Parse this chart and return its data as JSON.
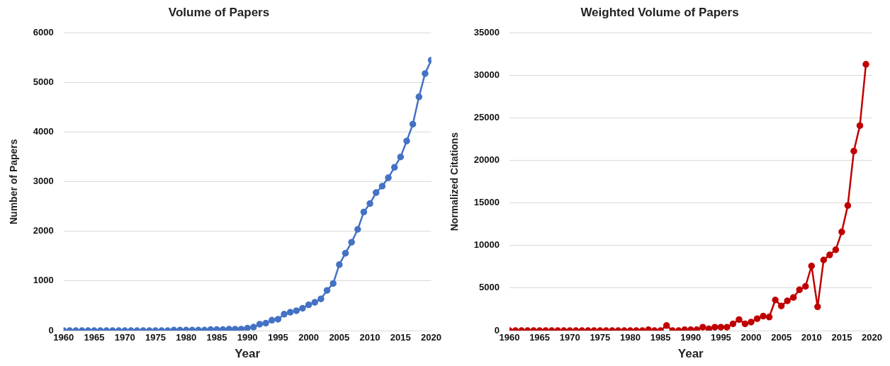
{
  "chart_data": [
    {
      "type": "line",
      "title": "Volume of Papers",
      "xlabel": "Year",
      "ylabel": "Number of Papers",
      "x": [
        1960,
        1961,
        1962,
        1963,
        1964,
        1965,
        1966,
        1967,
        1968,
        1969,
        1970,
        1971,
        1972,
        1973,
        1974,
        1975,
        1976,
        1977,
        1978,
        1979,
        1980,
        1981,
        1982,
        1983,
        1984,
        1985,
        1986,
        1987,
        1988,
        1989,
        1990,
        1991,
        1992,
        1993,
        1994,
        1995,
        1996,
        1997,
        1998,
        1999,
        2000,
        2001,
        2002,
        2003,
        2004,
        2005,
        2006,
        2007,
        2008,
        2009,
        2010,
        2011,
        2012,
        2013,
        2014,
        2015,
        2016,
        2017,
        2018,
        2019,
        2020
      ],
      "series": [
        {
          "color": "#4472c4",
          "values": [
            0,
            0,
            0,
            0,
            0,
            0,
            0,
            0,
            0,
            0,
            0,
            0,
            0,
            0,
            0,
            0,
            0,
            0,
            10,
            10,
            10,
            10,
            10,
            10,
            20,
            20,
            20,
            30,
            30,
            30,
            50,
            70,
            130,
            150,
            210,
            230,
            330,
            370,
            400,
            450,
            520,
            570,
            640,
            810,
            950,
            1330,
            1560,
            1780,
            2040,
            2390,
            2560,
            2780,
            2910,
            3080,
            3290,
            3500,
            3820,
            4160,
            4710,
            5180,
            5450
          ]
        }
      ],
      "xlim": [
        1960,
        2020
      ],
      "xticks": [
        1960,
        1965,
        1970,
        1975,
        1980,
        1985,
        1990,
        1995,
        2000,
        2005,
        2010,
        2015,
        2020
      ],
      "ylim": [
        0,
        6000
      ],
      "yticks": [
        0,
        1000,
        2000,
        3000,
        4000,
        5000,
        6000
      ],
      "grid": "y",
      "legend": false,
      "marker": "circle",
      "line_style": "solid"
    },
    {
      "type": "line",
      "title": "Weighted Volume of Papers",
      "xlabel": "Year",
      "ylabel": "Normalized Citations",
      "x": [
        1960,
        1961,
        1962,
        1963,
        1964,
        1965,
        1966,
        1967,
        1968,
        1969,
        1970,
        1971,
        1972,
        1973,
        1974,
        1975,
        1976,
        1977,
        1978,
        1979,
        1980,
        1981,
        1982,
        1983,
        1984,
        1985,
        1986,
        1987,
        1988,
        1989,
        1990,
        1991,
        1992,
        1993,
        1994,
        1995,
        1996,
        1997,
        1998,
        1999,
        2000,
        2001,
        2002,
        2003,
        2004,
        2005,
        2006,
        2007,
        2008,
        2009,
        2010,
        2011,
        2012,
        2013,
        2014,
        2015,
        2016,
        2017,
        2018,
        2019
      ],
      "series": [
        {
          "color": "#c00000",
          "values": [
            0,
            0,
            0,
            0,
            0,
            0,
            0,
            0,
            0,
            0,
            0,
            0,
            0,
            0,
            0,
            0,
            0,
            0,
            0,
            0,
            0,
            0,
            0,
            100,
            0,
            0,
            600,
            0,
            0,
            100,
            100,
            100,
            400,
            200,
            400,
            400,
            400,
            800,
            1300,
            800,
            1000,
            1400,
            1700,
            1600,
            3600,
            2900,
            3500,
            3900,
            4800,
            5200,
            7600,
            2800,
            8300,
            8900,
            9500,
            11600,
            14700,
            21100,
            24100,
            31300
          ]
        }
      ],
      "xlim": [
        1960,
        2020
      ],
      "xticks": [
        1960,
        1965,
        1970,
        1975,
        1980,
        1985,
        1990,
        1995,
        2000,
        2005,
        2010,
        2015,
        2020
      ],
      "ylim": [
        0,
        35000
      ],
      "yticks": [
        0,
        5000,
        10000,
        15000,
        20000,
        25000,
        30000,
        35000
      ],
      "grid": "y",
      "legend": false,
      "marker": "circle",
      "line_style": "solid"
    }
  ]
}
